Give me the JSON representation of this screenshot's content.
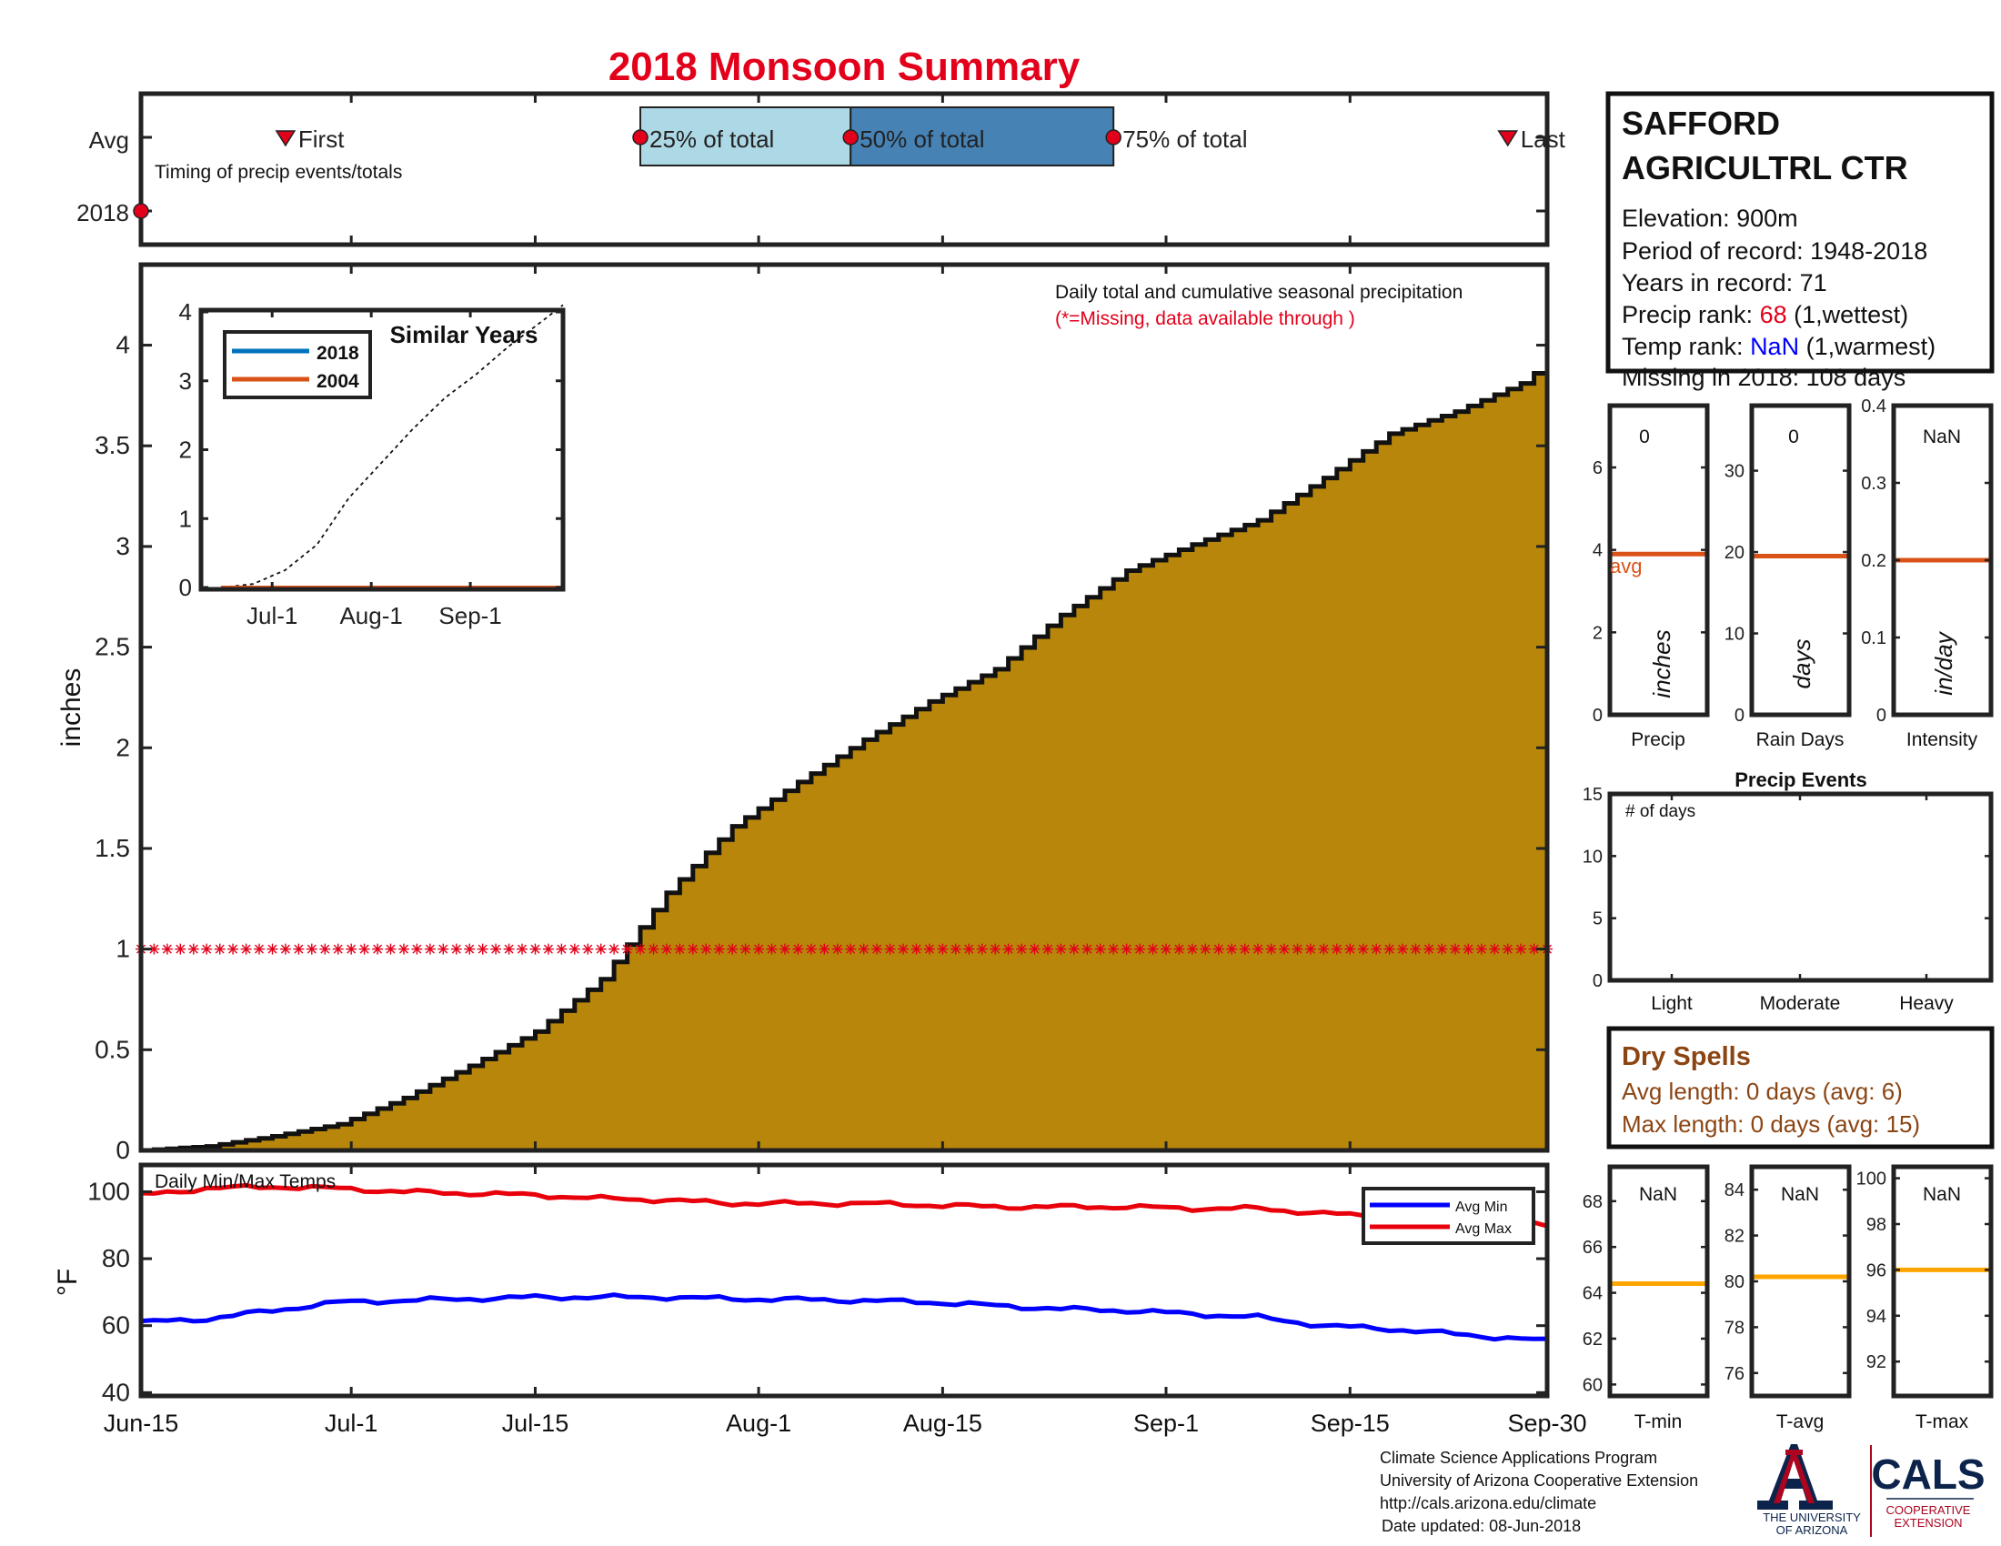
{
  "title": "2018 Monsoon Summary",
  "timing": {
    "row_labels": [
      "Avg",
      "2018"
    ],
    "caption": "Timing of precip events/totals",
    "first_label": "First",
    "last_label": "Last",
    "q25_label": "25% of total",
    "q50_label": "50% of total",
    "q75_label": "75% of total",
    "first_date": "2018-06-26",
    "last_date": "2018-09-27",
    "q25_date": "2018-07-23",
    "q50_date": "2018-08-08",
    "q75_date": "2018-08-28",
    "year_marker_date": "2018-06-15"
  },
  "station": {
    "name_line1": "SAFFORD",
    "name_line2": "AGRICULTRL CTR",
    "elevation": "Elevation: 900m",
    "period": "Period of record: 1948-2018",
    "years": "Years in record: 71",
    "precip_rank_label": "Precip rank: ",
    "precip_rank_value": "68",
    "precip_rank_note": " (1,wettest)",
    "temp_rank_label": "Temp rank: ",
    "temp_rank_value": "NaN",
    "temp_rank_note": " (1,warmest)",
    "missing": "Missing in 2018: 108 days"
  },
  "main": {
    "caption": "Daily total and cumulative seasonal precipitation",
    "missing_note": "(*=Missing, data available through )",
    "ylabel": "inches",
    "x_ticks": [
      "Jun-15",
      "Jul-1",
      "Jul-15",
      "Aug-1",
      "Aug-15",
      "Sep-1",
      "Sep-15",
      "Sep-30"
    ]
  },
  "inset": {
    "title": "Similar Years",
    "legend": [
      "2018",
      "2004"
    ],
    "x_ticks": [
      "Jul-1",
      "Aug-1",
      "Sep-1"
    ]
  },
  "side_stats": {
    "precip": {
      "label": "Precip",
      "unit": "inches",
      "value": "0",
      "avg_label": "avg"
    },
    "rain_days": {
      "label": "Rain Days",
      "unit": "days",
      "value": "0"
    },
    "intensity": {
      "label": "Intensity",
      "unit": "in/day",
      "value": "NaN"
    }
  },
  "events": {
    "title": "Precip Events",
    "inner_label": "# of days",
    "categories": [
      "Light",
      "Moderate",
      "Heavy"
    ]
  },
  "dry_spells": {
    "title": "Dry Spells",
    "avg": "Avg length: 0 days (avg: 6)",
    "max": "Max length: 0 days (avg: 15)"
  },
  "temps": {
    "caption": "Daily Min/Max Temps",
    "ylabel": "°F",
    "legend": [
      "Avg Min",
      "Avg Max"
    ],
    "panels": [
      {
        "label": "T-min",
        "value": "NaN"
      },
      {
        "label": "T-avg",
        "value": "NaN"
      },
      {
        "label": "T-max",
        "value": "NaN"
      }
    ]
  },
  "footer": {
    "line1": "Climate Science Applications Program",
    "line2": "University of Arizona Cooperative Extension",
    "line3": "http://cals.arizona.edu/climate",
    "line4": "Date updated: 08-Jun-2018",
    "ua_logo_line1": "THE UNIVERSITY",
    "ua_logo_line2": "OF ARIZONA",
    "cals_logo": "CALS",
    "cals_sub1": "COOPERATIVE",
    "cals_sub2": "EXTENSION"
  },
  "colors": {
    "title_red": "#e2001a",
    "fill_gold": "#b8860b",
    "q1_blue": "#add8e6",
    "q2_blue": "#4682b4",
    "avg_orange": "#d95319",
    "temp_orange": "#ffa500",
    "max_red": "#e8000b",
    "min_blue": "#0000ff",
    "rank_blue": "#0000ff",
    "dry_brown": "#8b4513",
    "ua_navy": "#0c234b",
    "ua_red": "#ab0520"
  },
  "chart_data": [
    {
      "type": "area",
      "title": "Daily total and cumulative seasonal precipitation",
      "ylabel": "inches",
      "xlim": [
        "2018-06-15",
        "2018-09-30"
      ],
      "ylim": [
        0,
        4.4
      ],
      "yticks": [
        0,
        0.5,
        1,
        1.5,
        2,
        2.5,
        3,
        3.5,
        4
      ],
      "x_ticks": [
        "Jun-15",
        "Jul-1",
        "Jul-15",
        "Aug-1",
        "Aug-15",
        "Sep-1",
        "Sep-15",
        "Sep-30"
      ],
      "series": [
        {
          "name": "Cumulative precipitation",
          "x": [
            "2018-06-15",
            "2018-06-20",
            "2018-06-25",
            "2018-06-30",
            "2018-07-05",
            "2018-07-10",
            "2018-07-15",
            "2018-07-20",
            "2018-07-25",
            "2018-07-30",
            "2018-08-04",
            "2018-08-09",
            "2018-08-14",
            "2018-08-19",
            "2018-08-24",
            "2018-08-29",
            "2018-09-03",
            "2018-09-08",
            "2018-09-13",
            "2018-09-18",
            "2018-09-23",
            "2018-09-28",
            "2018-09-30"
          ],
          "values": [
            0.0,
            0.02,
            0.07,
            0.13,
            0.26,
            0.42,
            0.59,
            0.85,
            1.28,
            1.61,
            1.83,
            2.04,
            2.23,
            2.39,
            2.66,
            2.88,
            3.01,
            3.13,
            3.34,
            3.56,
            3.67,
            3.81,
            3.91
          ]
        },
        {
          "name": "Missing",
          "x": [
            "2018-06-15",
            "2018-09-30"
          ],
          "values": [
            1,
            1
          ]
        }
      ]
    },
    {
      "type": "line",
      "title": "Similar Years",
      "ylim": [
        0,
        4
      ],
      "yticks": [
        0,
        1,
        2,
        3,
        4
      ],
      "x_ticks": [
        "Jul-1",
        "Aug-1",
        "Sep-1"
      ],
      "series": [
        {
          "name": "2018",
          "x": [
            "2018-06-15",
            "2018-09-30"
          ],
          "values": [
            0,
            0
          ]
        },
        {
          "name": "2004",
          "x": [
            "2018-06-15",
            "2018-09-30"
          ],
          "values": [
            0,
            0
          ]
        },
        {
          "name": "",
          "x": [
            "2018-06-15",
            "2018-06-25",
            "2018-07-05",
            "2018-07-15",
            "2018-07-25",
            "2018-08-04",
            "2018-08-14",
            "2018-08-24",
            "2018-09-03",
            "2018-09-13",
            "2018-09-23",
            "2018-09-30"
          ],
          "values": [
            0,
            0.05,
            0.25,
            0.62,
            1.3,
            1.8,
            2.3,
            2.75,
            3.1,
            3.5,
            3.85,
            4.1
          ]
        }
      ]
    },
    {
      "type": "line",
      "title": "Daily Min/Max Temps",
      "ylabel": "°F",
      "ylim": [
        39,
        108
      ],
      "yticks": [
        40,
        60,
        80,
        100
      ],
      "series": [
        {
          "name": "Avg Max",
          "x": [
            "2018-06-15",
            "2018-06-20",
            "2018-06-25",
            "2018-06-30",
            "2018-07-05",
            "2018-07-10",
            "2018-07-15",
            "2018-07-20",
            "2018-07-25",
            "2018-07-30",
            "2018-08-04",
            "2018-08-09",
            "2018-08-14",
            "2018-08-19",
            "2018-08-24",
            "2018-08-29",
            "2018-09-03",
            "2018-09-08",
            "2018-09-13",
            "2018-09-18",
            "2018-09-23",
            "2018-09-28",
            "2018-09-30"
          ],
          "values": [
            99,
            101,
            101.5,
            101,
            100,
            99.5,
            99,
            98,
            97.5,
            96.5,
            96.5,
            96.5,
            96,
            95.5,
            95.5,
            95.5,
            95,
            95,
            93.5,
            92.5,
            91.5,
            90.5,
            90
          ]
        },
        {
          "name": "Avg Min",
          "x": [
            "2018-06-15",
            "2018-06-20",
            "2018-06-25",
            "2018-06-30",
            "2018-07-05",
            "2018-07-10",
            "2018-07-15",
            "2018-07-20",
            "2018-07-25",
            "2018-07-30",
            "2018-08-04",
            "2018-08-09",
            "2018-08-14",
            "2018-08-19",
            "2018-08-24",
            "2018-08-29",
            "2018-09-03",
            "2018-09-08",
            "2018-09-13",
            "2018-09-18",
            "2018-09-23",
            "2018-09-28",
            "2018-09-30"
          ],
          "values": [
            61,
            62,
            64.5,
            67,
            67.5,
            68,
            68.5,
            68.5,
            68.5,
            68,
            67.8,
            67.5,
            67,
            66,
            65,
            64.5,
            63.5,
            62.5,
            60,
            59,
            57.5,
            56,
            55.5
          ]
        }
      ]
    },
    {
      "type": "bar",
      "title": "Precip",
      "ylabel": "inches",
      "ylim": [
        0,
        7.5
      ],
      "yticks": [
        0,
        2,
        4,
        6
      ],
      "avg_line": 3.9,
      "values": [
        0
      ]
    },
    {
      "type": "bar",
      "title": "Rain Days",
      "ylabel": "days",
      "ylim": [
        0,
        38
      ],
      "yticks": [
        0,
        10,
        20,
        30
      ],
      "avg_line": 19.5,
      "values": [
        0
      ]
    },
    {
      "type": "bar",
      "title": "Intensity",
      "ylabel": "in/day",
      "ylim": [
        0,
        0.4
      ],
      "yticks": [
        0,
        0.1,
        0.2,
        0.3,
        0.4
      ],
      "avg_line": 0.2,
      "values": []
    },
    {
      "type": "bar",
      "title": "Precip Events",
      "categories": [
        "Light",
        "Moderate",
        "Heavy"
      ],
      "ylim": [
        0,
        15
      ],
      "yticks": [
        0,
        5,
        10,
        15
      ],
      "values": [
        0,
        0,
        0
      ]
    },
    {
      "type": "bar",
      "title": "T-min",
      "ylim": [
        59.5,
        69.5
      ],
      "yticks": [
        60,
        62,
        64,
        66,
        68
      ],
      "avg_line": 64.4,
      "values": []
    },
    {
      "type": "bar",
      "title": "T-avg",
      "ylim": [
        75,
        85
      ],
      "yticks": [
        76,
        78,
        80,
        82,
        84
      ],
      "avg_line": 80.2,
      "values": []
    },
    {
      "type": "bar",
      "title": "T-max",
      "ylim": [
        90.5,
        100.5
      ],
      "yticks": [
        92,
        94,
        96,
        98,
        100
      ],
      "avg_line": 96,
      "values": []
    }
  ]
}
